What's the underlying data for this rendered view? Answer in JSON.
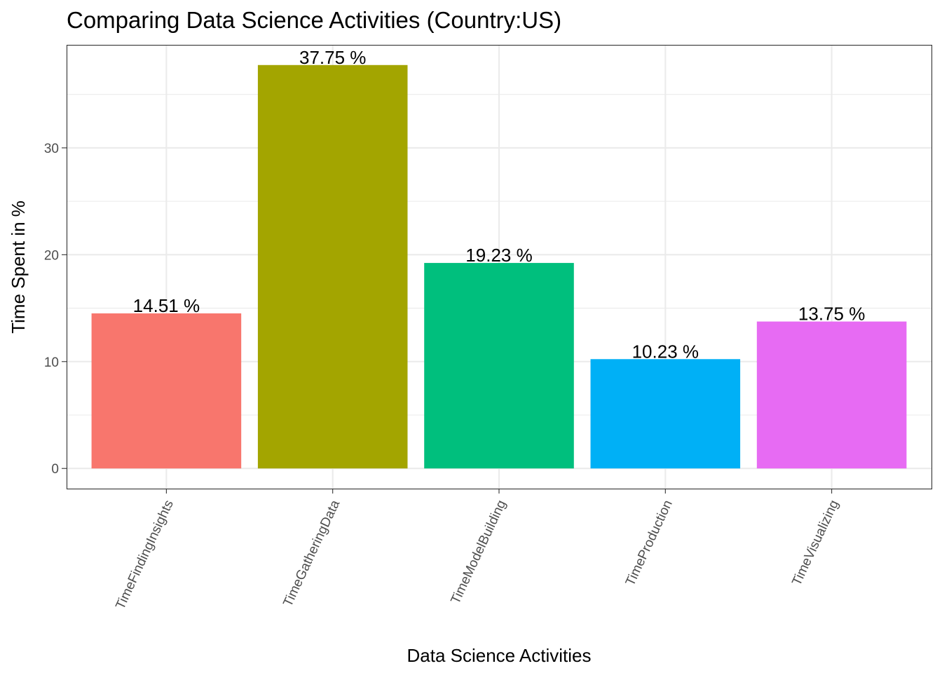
{
  "chart_data": {
    "type": "bar",
    "title": "Comparing Data Science Activities (Country:US)",
    "xlabel": "Data Science Activities",
    "ylabel": "Time Spent in %",
    "categories": [
      "TimeFindingInsights",
      "TimeGatheringData",
      "TimeModelBuilding",
      "TimeProduction",
      "TimeVisualizing"
    ],
    "values": [
      14.51,
      37.75,
      19.23,
      10.23,
      13.75
    ],
    "data_labels": [
      "14.51 %",
      "37.75 %",
      "19.23 %",
      "10.23 %",
      "13.75 %"
    ],
    "colors": [
      "#F8766D",
      "#A3A500",
      "#00BF7D",
      "#00B0F6",
      "#E76BF3"
    ],
    "yticks": [
      0,
      10,
      20,
      30
    ],
    "ylim": [
      -1.8875,
      39.6375
    ],
    "grid": true,
    "legend": "none"
  }
}
